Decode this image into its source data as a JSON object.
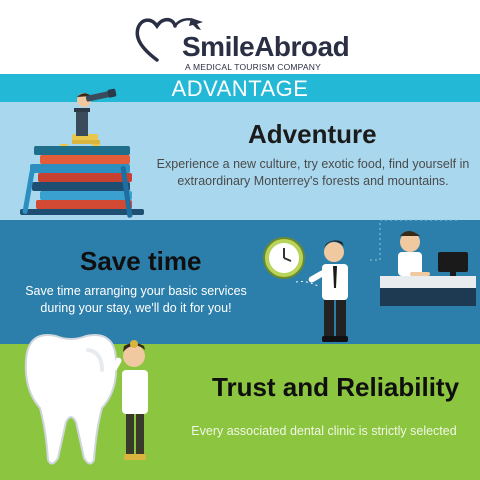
{
  "header": {
    "brand_name": "SmileAbroad",
    "tagline": "A MEDICAL TOURISM COMPANY"
  },
  "advantage": {
    "title": "ADVANTAGE"
  },
  "sections": [
    {
      "title": "Adventure",
      "text": "Experience a new culture, try exotic food, find yourself in extraordinary Monterrey's forests and mountains."
    },
    {
      "title": "Save time",
      "text": "Save time arranging your basic services during your stay, we'll do it for you!"
    },
    {
      "title": "Trust and Reliability",
      "text": "Every associated dental clinic is strictly selected"
    }
  ],
  "colors": {
    "advantage_band": "#22b8d6",
    "adventure_band": "#a9d8ee",
    "savetime_band": "#2d7fab",
    "trust_band": "#8cc53f",
    "logo_dark": "#2a2f44"
  },
  "icons": [
    "heart-plane-logo-icon",
    "explorer-telescope-illustration",
    "book-stack-illustration",
    "clock-icon",
    "businessman-illustration",
    "office-desk-illustration",
    "tooth-illustration",
    "dentist-illustration"
  ]
}
